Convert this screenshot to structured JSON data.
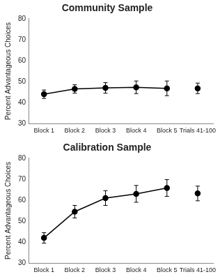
{
  "chart_data": [
    {
      "type": "line",
      "title": "Community Sample",
      "y_label": "Percent Advantageous Choices",
      "categories": [
        "Block 1",
        "Block 2",
        "Block 3",
        "Block 4",
        "Block 5",
        "Trials 41-100"
      ],
      "series": [
        {
          "color": "#000000",
          "marker": "circle",
          "line_style": "solid",
          "values": [
            44,
            46.5,
            47,
            47.3,
            46.8,
            null
          ],
          "errors": [
            2,
            2,
            2.5,
            3,
            3.5,
            null
          ]
        },
        {
          "color": "#000000",
          "marker": "circle",
          "line_style": "none",
          "values": [
            null,
            null,
            null,
            null,
            null,
            46.8
          ],
          "errors": [
            null,
            null,
            null,
            null,
            null,
            2.5
          ]
        }
      ],
      "ylim": [
        30,
        80
      ],
      "yticks": [
        30,
        40,
        50,
        60,
        70,
        80
      ],
      "grid": false
    },
    {
      "type": "line",
      "title": "Calibration Sample",
      "y_label": "Percent Advantageous Choices",
      "categories": [
        "Block 1",
        "Block 2",
        "Block 3",
        "Block 4",
        "Block 5",
        "Trials 41-100"
      ],
      "series": [
        {
          "color": "#000000",
          "marker": "circle",
          "line_style": "solid",
          "values": [
            42,
            54.5,
            61,
            63,
            65.8,
            null
          ],
          "errors": [
            2.5,
            3,
            3.5,
            4,
            4,
            null
          ]
        },
        {
          "color": "#000000",
          "marker": "circle",
          "line_style": "none",
          "values": [
            null,
            null,
            null,
            null,
            null,
            63.2
          ],
          "errors": [
            null,
            null,
            null,
            null,
            null,
            3.5
          ]
        }
      ],
      "ylim": [
        30,
        80
      ],
      "yticks": [
        30,
        40,
        50,
        60,
        70,
        80
      ],
      "grid": false
    }
  ]
}
